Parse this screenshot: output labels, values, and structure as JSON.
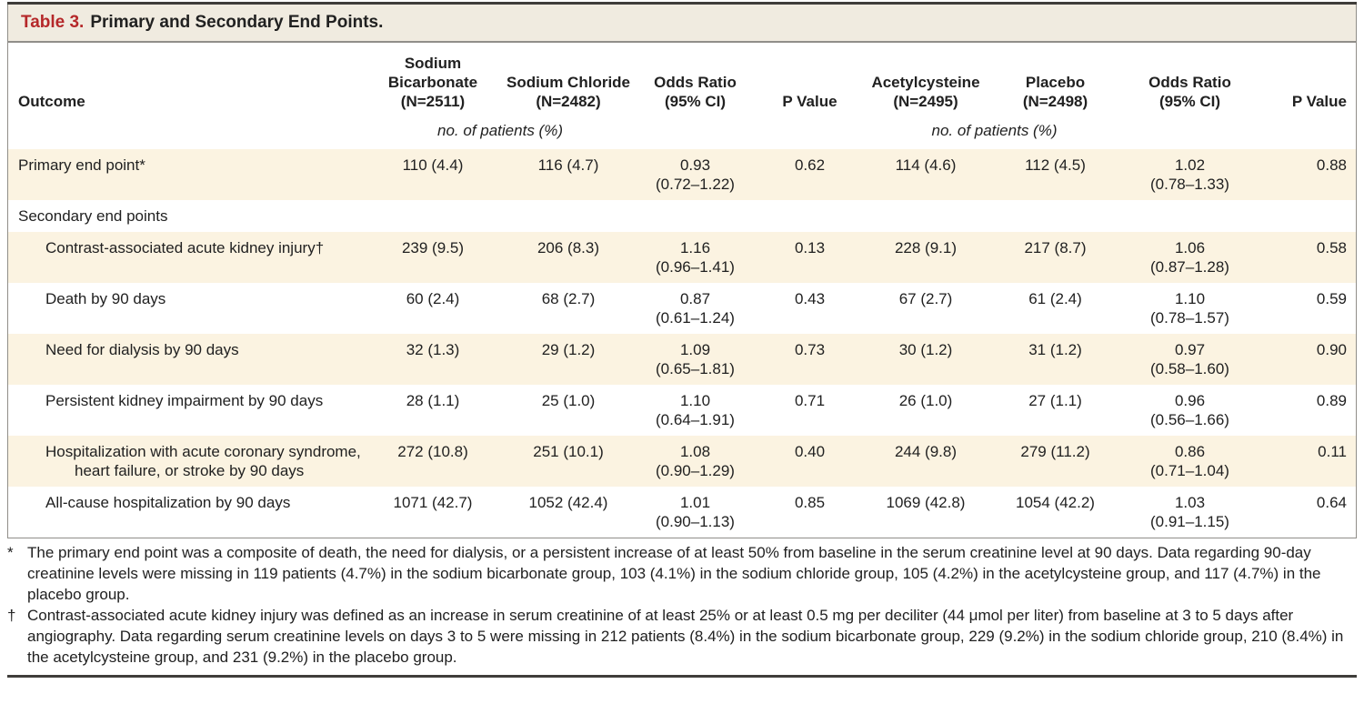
{
  "title": {
    "label": "Table 3.",
    "text": "Primary and Secondary End Points."
  },
  "colors": {
    "title_red": "#b5282a",
    "title_bar_bg": "#f0ebe0",
    "row_shade": "#fbf3e1",
    "box_border": "#908e89",
    "dark_rule": "#3f3d3a"
  },
  "table": {
    "outcome_header": "Outcome",
    "columns": [
      {
        "lines": [
          "Sodium",
          "Bicarbonate",
          "(N=2511)"
        ]
      },
      {
        "lines": [
          "Sodium Chloride",
          "(N=2482)"
        ]
      },
      {
        "lines": [
          "Odds Ratio",
          "(95% CI)"
        ]
      },
      {
        "lines": [
          "P Value"
        ]
      },
      {
        "lines": [
          "Acetylcysteine",
          "(N=2495)"
        ]
      },
      {
        "lines": [
          "Placebo",
          "(N=2498)"
        ]
      },
      {
        "lines": [
          "Odds Ratio",
          "(95% CI)"
        ]
      },
      {
        "lines": [
          "P Value"
        ]
      }
    ],
    "subheader_left": "no. of patients (%)",
    "subheader_right": "no. of patients (%)",
    "rows": [
      {
        "outcome": "Primary end point*",
        "indent": false,
        "shaded": true,
        "cells": [
          [
            "110 (4.4)"
          ],
          [
            "116 (4.7)"
          ],
          [
            "0.93",
            "(0.72–1.22)"
          ],
          [
            "0.62"
          ],
          [
            "114 (4.6)"
          ],
          [
            "112 (4.5)"
          ],
          [
            "1.02",
            "(0.78–1.33)"
          ],
          [
            "0.88"
          ]
        ]
      },
      {
        "outcome": "Secondary end points",
        "indent": false,
        "shaded": false,
        "cells": [
          [],
          [],
          [],
          [],
          [],
          [],
          [],
          []
        ]
      },
      {
        "outcome": "Contrast-associated acute kidney injury†",
        "indent": true,
        "shaded": true,
        "cells": [
          [
            "239 (9.5)"
          ],
          [
            "206 (8.3)"
          ],
          [
            "1.16",
            "(0.96–1.41)"
          ],
          [
            "0.13"
          ],
          [
            "228 (9.1)"
          ],
          [
            "217 (8.7)"
          ],
          [
            "1.06",
            "(0.87–1.28)"
          ],
          [
            "0.58"
          ]
        ]
      },
      {
        "outcome": "Death by 90 days",
        "indent": true,
        "shaded": false,
        "cells": [
          [
            "60 (2.4)"
          ],
          [
            "68 (2.7)"
          ],
          [
            "0.87",
            "(0.61–1.24)"
          ],
          [
            "0.43"
          ],
          [
            "67 (2.7)"
          ],
          [
            "61 (2.4)"
          ],
          [
            "1.10",
            "(0.78–1.57)"
          ],
          [
            "0.59"
          ]
        ]
      },
      {
        "outcome": "Need for dialysis by 90 days",
        "indent": true,
        "shaded": true,
        "cells": [
          [
            "32 (1.3)"
          ],
          [
            "29 (1.2)"
          ],
          [
            "1.09",
            "(0.65–1.81)"
          ],
          [
            "0.73"
          ],
          [
            "30 (1.2)"
          ],
          [
            "31 (1.2)"
          ],
          [
            "0.97",
            "(0.58–1.60)"
          ],
          [
            "0.90"
          ]
        ]
      },
      {
        "outcome": "Persistent kidney impairment by 90 days",
        "indent": true,
        "shaded": false,
        "cells": [
          [
            "28 (1.1)"
          ],
          [
            "25 (1.0)"
          ],
          [
            "1.10",
            "(0.64–1.91)"
          ],
          [
            "0.71"
          ],
          [
            "26 (1.0)"
          ],
          [
            "27 (1.1)"
          ],
          [
            "0.96",
            "(0.56–1.66)"
          ],
          [
            "0.89"
          ]
        ]
      },
      {
        "outcome": "Hospitalization with acute coronary syndrome, heart failure, or stroke by 90 days",
        "indent": true,
        "shaded": true,
        "cells": [
          [
            "272 (10.8)"
          ],
          [
            "251 (10.1)"
          ],
          [
            "1.08",
            "(0.90–1.29)"
          ],
          [
            "0.40"
          ],
          [
            "244 (9.8)"
          ],
          [
            "279 (11.2)"
          ],
          [
            "0.86",
            "(0.71–1.04)"
          ],
          [
            "0.11"
          ]
        ]
      },
      {
        "outcome": "All-cause hospitalization by 90 days",
        "indent": true,
        "shaded": false,
        "cells": [
          [
            "1071 (42.7)"
          ],
          [
            "1052 (42.4)"
          ],
          [
            "1.01",
            "(0.90–1.13)"
          ],
          [
            "0.85"
          ],
          [
            "1069 (42.8)"
          ],
          [
            "1054 (42.2)"
          ],
          [
            "1.03",
            "(0.91–1.15)"
          ],
          [
            "0.64"
          ]
        ]
      }
    ]
  },
  "footnotes": [
    {
      "marker": "*",
      "text": "The primary end point was a composite of death, the need for dialysis, or a persistent increase of at least 50% from baseline in the serum creatinine level at 90 days. Data regarding 90-day creatinine levels were missing in 119 patients (4.7%) in the sodium bicarbonate group, 103 (4.1%) in the sodium chloride group, 105 (4.2%) in the acetylcysteine group, and 117 (4.7%) in the placebo group."
    },
    {
      "marker": "†",
      "text": "Contrast-associated acute kidney injury was defined as an increase in serum creatinine of at least 25% or at least 0.5 mg per deciliter (44 μmol per liter) from baseline at 3 to 5 days after angiography. Data regarding serum creatinine levels on days 3 to 5 were missing in 212 patients (8.4%) in the sodium bicarbonate group, 229 (9.2%) in the sodium chloride group, 210 (8.4%) in the acetylcysteine group, and 231 (9.2%) in the placebo group."
    }
  ]
}
